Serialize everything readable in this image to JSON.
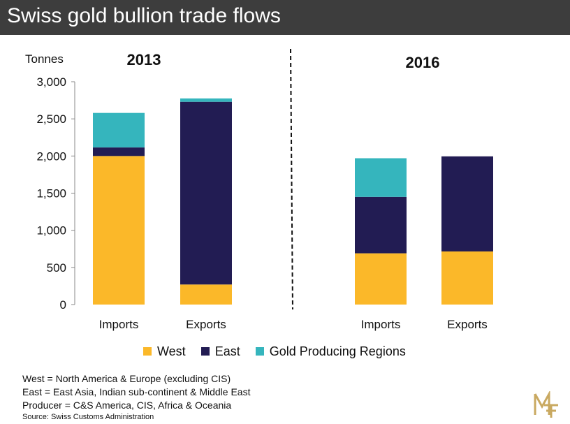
{
  "header": {
    "title": "Swiss gold bullion trade flows"
  },
  "chart_data": {
    "type": "bar",
    "stacked": true,
    "ylabel": "Tonnes",
    "ylim": [
      0,
      3000
    ],
    "yticks": [
      "0",
      "500",
      "1,000",
      "1,500",
      "2,000",
      "2,500",
      "3,000"
    ],
    "yticks_values": [
      0,
      500,
      1000,
      1500,
      2000,
      2500,
      3000
    ],
    "grid": false,
    "legend_position": "bottom",
    "groups": [
      {
        "label": "2013",
        "categories": [
          "Imports",
          "Exports"
        ]
      },
      {
        "label": "2016",
        "categories": [
          "Imports",
          "Exports"
        ]
      }
    ],
    "series": [
      {
        "name": "West",
        "color": "#fbb829",
        "values": [
          2000,
          270,
          690,
          715
        ]
      },
      {
        "name": "East",
        "color": "#221c53",
        "values": [
          115,
          2460,
          760,
          1280
        ]
      },
      {
        "name": "Gold Producing Regions",
        "color": "#35b5bd",
        "values": [
          465,
          45,
          520,
          0
        ]
      }
    ]
  },
  "notes": [
    "West = North America & Europe (excluding CIS)",
    "East = East Asia, Indian sub-continent & Middle East",
    "Producer = C&S America, CIS, Africa & Oceania"
  ],
  "source": "Source:  Swiss Customs Administration",
  "colors": {
    "header_bg": "#3d3d3d",
    "logo": "#c9a961"
  },
  "logo": {
    "icon": "mf-monogram-icon"
  }
}
